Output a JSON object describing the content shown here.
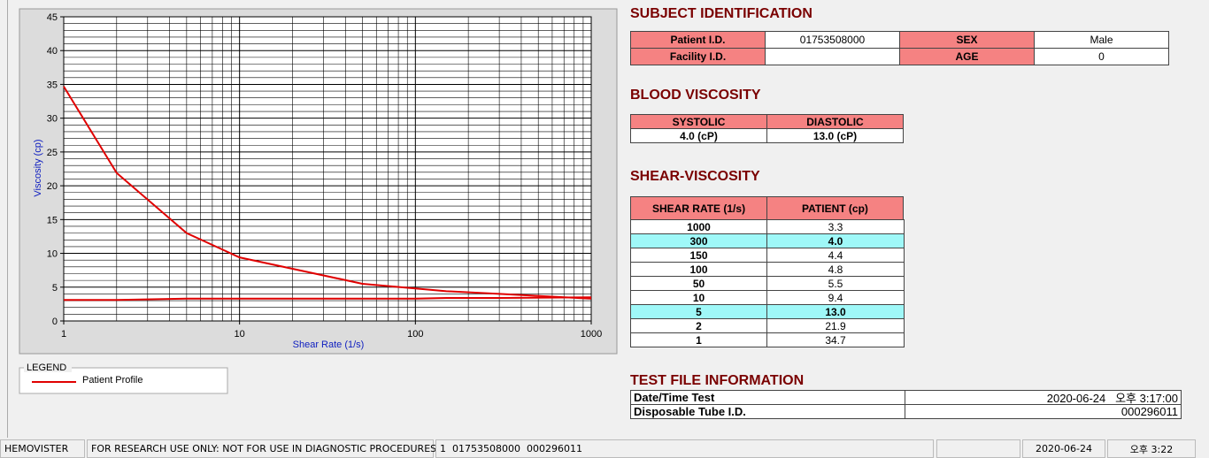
{
  "chart_data": {
    "type": "line",
    "x_label": "Shear Rate (1/s)",
    "y_label": "Viscosity (cp)",
    "x": [
      1,
      2,
      5,
      10,
      50,
      100,
      150,
      300,
      1000
    ],
    "series": [
      {
        "name": "Patient Profile",
        "color": "#e00000",
        "values": [
          34.7,
          21.9,
          13.0,
          9.4,
          5.5,
          4.8,
          4.4,
          4.0,
          3.3
        ]
      },
      {
        "color": "#e00000",
        "values": [
          3.1,
          3.1,
          3.3,
          3.3,
          3.3,
          3.3,
          3.4,
          3.4,
          3.5
        ]
      }
    ],
    "xlim": [
      1,
      1000
    ],
    "xticks": [
      1,
      10,
      100,
      1000
    ],
    "log_x": true,
    "ylim": [
      0,
      45
    ],
    "yticks": [
      0,
      5,
      10,
      15,
      20,
      25,
      30,
      35,
      40,
      45
    ],
    "grid": true,
    "legend_title": "LEGEND"
  },
  "subject": {
    "title": "SUBJECT IDENTIFICATION",
    "fields": [
      {
        "label": "Patient I.D.",
        "value": "01753508000"
      },
      {
        "label": "SEX",
        "value": "Male"
      },
      {
        "label": "Facility I.D."
      },
      {
        "label": "AGE",
        "value": "0"
      }
    ]
  },
  "blood_viscosity": {
    "title": "BLOOD VISCOSITY",
    "headers": [
      "SYSTOLIC",
      "DIASTOLIC"
    ],
    "values": [
      "4.0 (cP)",
      "13.0 (cP)"
    ]
  },
  "shear_viscosity": {
    "title": "SHEAR-VISCOSITY",
    "headers": [
      "SHEAR RATE (1/s)",
      "PATIENT (cp)"
    ],
    "rows": [
      {
        "rate": "1000",
        "value": "3.3"
      },
      {
        "rate": "300",
        "value": "4.0",
        "highlight": true
      },
      {
        "rate": "150",
        "value": "4.4"
      },
      {
        "rate": "100",
        "value": "4.8"
      },
      {
        "rate": "50",
        "value": "5.5"
      },
      {
        "rate": "10",
        "value": "9.4"
      },
      {
        "rate": "5",
        "value": "13.0",
        "highlight": true
      },
      {
        "rate": "2",
        "value": "21.9"
      },
      {
        "rate": "1",
        "value": "34.7"
      }
    ]
  },
  "test_file": {
    "title": "TEST FILE INFORMATION",
    "rows": [
      [
        "Date/Time Test",
        "2020-06-24   오후 3:17:00"
      ],
      [
        "Disposable Tube I.D.",
        "000296011"
      ]
    ]
  },
  "status_bar": [
    "HEMOVISTER",
    "FOR RESEARCH USE ONLY: NOT FOR USE IN DIAGNOSTIC PROCEDURES",
    "1  01753508000  000296011",
    "2020-06-24",
    "오후 3:22"
  ]
}
